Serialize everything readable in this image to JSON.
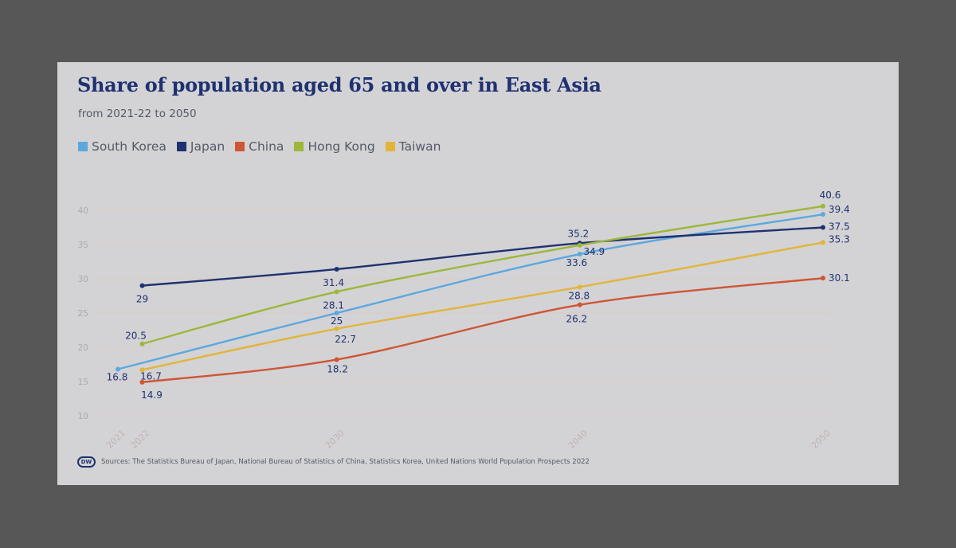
{
  "header": {
    "title": "Share of population aged 65 and over in East Asia",
    "subtitle": "from 2021-22 to 2050"
  },
  "footer": {
    "logo_text": "DW",
    "source": "Sources: The Statistics Bureau of Japan, National Bureau of Statistics of China, Statistics Korea, United Nations World Population Prospects 2022"
  },
  "colors": {
    "page_background": "#575757",
    "card_background": "#d3d3d5",
    "title": "#1f3170",
    "axis_text": "#a9a9b2",
    "x_tick_text": "#c1b3b3",
    "gridline": "#dec8c8",
    "data_label": "#1f3170"
  },
  "chart_data": {
    "type": "line",
    "title": "Share of population aged 65 and over in East Asia",
    "subtitle": "from 2021-22 to 2050",
    "xlabel": "",
    "ylabel": "",
    "x_ticks": [
      "2021",
      "2022",
      "2030",
      "2040",
      "2050"
    ],
    "y_ticks": [
      10,
      15,
      20,
      25,
      30,
      35,
      40
    ],
    "xlim": [
      2021,
      2050
    ],
    "ylim": [
      10,
      40
    ],
    "grid": true,
    "legend_position": "top-left",
    "series": [
      {
        "name": "South Korea",
        "color": "#5ba8df",
        "points": [
          {
            "x": 2021,
            "y": 16.8,
            "label": "16.8"
          },
          {
            "x": 2030,
            "y": 25,
            "label": "25"
          },
          {
            "x": 2040,
            "y": 33.6,
            "label": "33.6"
          },
          {
            "x": 2050,
            "y": 39.4,
            "label": "39.4"
          }
        ]
      },
      {
        "name": "Japan",
        "color": "#1f3170",
        "points": [
          {
            "x": 2022,
            "y": 29,
            "label": "29"
          },
          {
            "x": 2030,
            "y": 31.4,
            "label": "31.4"
          },
          {
            "x": 2040,
            "y": 35.2,
            "label": "35.2"
          },
          {
            "x": 2050,
            "y": 37.5,
            "label": "37.5"
          }
        ]
      },
      {
        "name": "China",
        "color": "#cf5534",
        "points": [
          {
            "x": 2022,
            "y": 14.9,
            "label": "14.9"
          },
          {
            "x": 2030,
            "y": 18.2,
            "label": "18.2"
          },
          {
            "x": 2040,
            "y": 26.2,
            "label": "26.2"
          },
          {
            "x": 2050,
            "y": 30.1,
            "label": "30.1"
          }
        ]
      },
      {
        "name": "Hong Kong",
        "color": "#9db73a",
        "points": [
          {
            "x": 2022,
            "y": 20.5,
            "label": "20.5"
          },
          {
            "x": 2030,
            "y": 28.1,
            "label": "28.1"
          },
          {
            "x": 2040,
            "y": 34.9,
            "label": "34.9"
          },
          {
            "x": 2050,
            "y": 40.6,
            "label": "40.6"
          }
        ]
      },
      {
        "name": "Taiwan",
        "color": "#e2b53a",
        "points": [
          {
            "x": 2022,
            "y": 16.7,
            "label": "16.7"
          },
          {
            "x": 2030,
            "y": 22.7,
            "label": "22.7"
          },
          {
            "x": 2040,
            "y": 28.8,
            "label": "28.8"
          },
          {
            "x": 2050,
            "y": 35.3,
            "label": "35.3"
          }
        ]
      }
    ]
  }
}
